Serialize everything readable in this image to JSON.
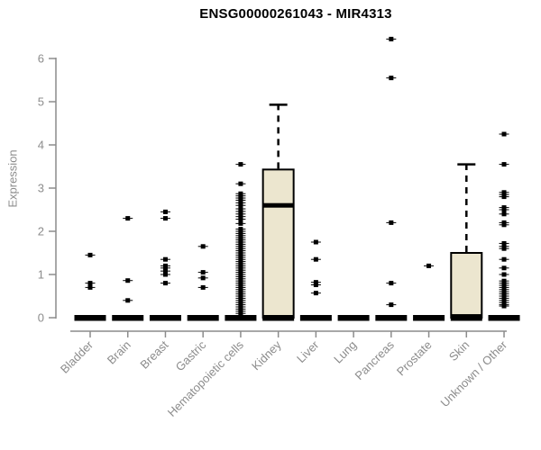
{
  "window": {
    "background": "#ffffff"
  },
  "chart_data": {
    "type": "boxplot",
    "title": "ENSG00000261043 - MIR4313",
    "ylabel": "Expression",
    "xlabel": "",
    "ylim": [
      0,
      6.6
    ],
    "yticks": [
      0,
      1,
      2,
      3,
      4,
      5,
      6
    ],
    "grid": false,
    "legend": false,
    "colors": {
      "box_fill": "#ece6cf",
      "box_stroke": "#000000",
      "median": "#000000",
      "outlier": "#000000",
      "axis": "#8c8c8c",
      "tick_label": "#8c8c8c",
      "title": "#000000"
    },
    "categories": [
      "Bladder",
      "Brain",
      "Breast",
      "Gastric",
      "Hematopoietic cells",
      "Kidney",
      "Liver",
      "Lung",
      "Pancreas",
      "Prostate",
      "Skin",
      "Unknown / Other"
    ],
    "series": [
      {
        "name": "Bladder",
        "q1": 0,
        "median": 0,
        "q3": 0,
        "whisker_low": 0,
        "whisker_high": 0,
        "outliers": [
          1.45,
          0.8,
          0.7
        ]
      },
      {
        "name": "Brain",
        "q1": 0,
        "median": 0,
        "q3": 0,
        "whisker_low": 0,
        "whisker_high": 0,
        "outliers": [
          2.3,
          0.86,
          0.4
        ]
      },
      {
        "name": "Breast",
        "q1": 0,
        "median": 0,
        "q3": 0,
        "whisker_low": 0,
        "whisker_high": 0,
        "outliers": [
          2.45,
          2.3,
          1.35,
          1.2,
          1.15,
          1.08,
          1.0,
          0.8
        ]
      },
      {
        "name": "Gastric",
        "q1": 0,
        "median": 0,
        "q3": 0,
        "whisker_low": 0,
        "whisker_high": 0,
        "outliers": [
          1.65,
          1.05,
          0.92,
          0.7
        ]
      },
      {
        "name": "Hematopoietic cells",
        "q1": 0,
        "median": 0,
        "q3": 0,
        "whisker_low": 0,
        "whisker_high": 0,
        "outliers": [
          3.55,
          3.1,
          2.87,
          2.82,
          2.77,
          2.72,
          2.66,
          2.6,
          2.52,
          2.46,
          2.4,
          2.34,
          2.28,
          2.18,
          2.05,
          2.0,
          1.95,
          1.9,
          1.85,
          1.8,
          1.75,
          1.7,
          1.65,
          1.6,
          1.55,
          1.5,
          1.45,
          1.4,
          1.35,
          1.3,
          1.25,
          1.2,
          1.15,
          1.1,
          1.05,
          1.0,
          0.95,
          0.9,
          0.85,
          0.8,
          0.75,
          0.7,
          0.65,
          0.6,
          0.55,
          0.5,
          0.45,
          0.4,
          0.35,
          0.3,
          0.25,
          0.2,
          0.15,
          0.1,
          0.05
        ]
      },
      {
        "name": "Kidney",
        "q1": 0,
        "median": 2.6,
        "q3": 3.43,
        "whisker_low": 0,
        "whisker_high": 4.93,
        "outliers": []
      },
      {
        "name": "Liver",
        "q1": 0,
        "median": 0,
        "q3": 0,
        "whisker_low": 0,
        "whisker_high": 0,
        "outliers": [
          1.75,
          1.35,
          0.82,
          0.76,
          0.57
        ]
      },
      {
        "name": "Lung",
        "q1": 0,
        "median": 0,
        "q3": 0,
        "whisker_low": 0,
        "whisker_high": 0,
        "outliers": []
      },
      {
        "name": "Pancreas",
        "q1": 0,
        "median": 0,
        "q3": 0,
        "whisker_low": 0,
        "whisker_high": 0,
        "outliers": [
          6.45,
          5.55,
          2.2,
          0.8,
          0.3
        ]
      },
      {
        "name": "Prostate",
        "q1": 0,
        "median": 0,
        "q3": 0,
        "whisker_low": 0,
        "whisker_high": 0,
        "outliers": [
          1.2
        ]
      },
      {
        "name": "Skin",
        "q1": 0,
        "median": 0.03,
        "q3": 1.5,
        "whisker_low": 0,
        "whisker_high": 3.55,
        "outliers": []
      },
      {
        "name": "Unknown / Other",
        "q1": 0,
        "median": 0,
        "q3": 0,
        "whisker_low": 0,
        "whisker_high": 0,
        "outliers": [
          4.25,
          3.55,
          2.9,
          2.85,
          2.8,
          2.55,
          2.5,
          2.4,
          2.2,
          2.15,
          1.72,
          1.65,
          1.6,
          1.35,
          1.15,
          1.0,
          0.85,
          0.8,
          0.75,
          0.7,
          0.65,
          0.6,
          0.55,
          0.5,
          0.45,
          0.4,
          0.35,
          0.3,
          0.27
        ]
      }
    ]
  }
}
